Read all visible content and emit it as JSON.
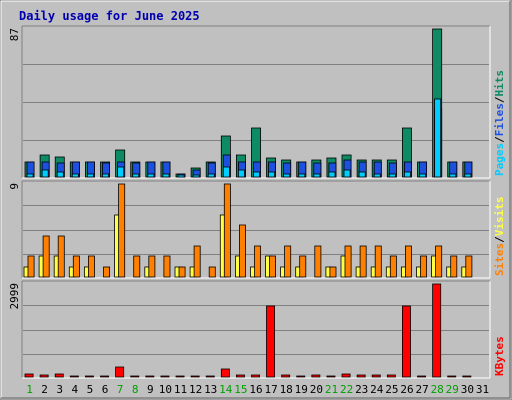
{
  "chart_data": {
    "type": "bar",
    "title": "Daily usage for June 2025",
    "days": [
      "1",
      "2",
      "3",
      "4",
      "5",
      "6",
      "7",
      "8",
      "9",
      "10",
      "11",
      "12",
      "13",
      "14",
      "15",
      "16",
      "17",
      "18",
      "19",
      "20",
      "21",
      "22",
      "23",
      "24",
      "25",
      "26",
      "27",
      "28",
      "29",
      "30",
      "31"
    ],
    "weekend_days": [
      "1",
      "7",
      "8",
      "14",
      "15",
      "21",
      "22",
      "28",
      "29"
    ],
    "panels": [
      {
        "id": "hits-files-pages",
        "max_label": "87",
        "ylim": [
          0,
          87
        ],
        "series": [
          {
            "name": "Hits",
            "color": "#0e8a64",
            "values": [
              9,
              13,
              12,
              9,
              9,
              9,
              16,
              9,
              9,
              9,
              2,
              5,
              9,
              24,
              13,
              29,
              11,
              10,
              9,
              10,
              11,
              13,
              10,
              10,
              10,
              29,
              9,
              87,
              9,
              9,
              null
            ]
          },
          {
            "name": "Files",
            "color": "#1e50e0",
            "values": [
              9,
              9,
              8,
              9,
              9,
              8,
              9,
              8,
              9,
              9,
              2,
              4,
              8,
              13,
              9,
              9,
              9,
              8,
              9,
              8,
              8,
              10,
              9,
              9,
              8,
              9,
              9,
              40,
              9,
              9,
              null
            ]
          },
          {
            "name": "Pages",
            "color": "#00ccff",
            "values": [
              2,
              4,
              3,
              2,
              2,
              2,
              6,
              2,
              2,
              2,
              1,
              1,
              2,
              6,
              4,
              3,
              3,
              2,
              2,
              2,
              3,
              4,
              3,
              2,
              2,
              3,
              2,
              46,
              2,
              2,
              null
            ]
          }
        ],
        "axis_labels": [
          "Pages",
          "/",
          "Files",
          "/",
          "Hits"
        ],
        "axis_label_colors": [
          "#00ccff",
          "#000000",
          "#1e50e0",
          "#000000",
          "#0e8a64"
        ]
      },
      {
        "id": "visits-sites",
        "max_label": "9",
        "ylim": [
          0,
          9
        ],
        "series": [
          {
            "name": "Visits",
            "color": "#ffff44",
            "values": [
              1,
              2,
              2,
              1,
              1,
              null,
              6,
              null,
              1,
              null,
              1,
              1,
              null,
              6,
              2,
              1,
              2,
              1,
              1,
              null,
              1,
              2,
              1,
              1,
              1,
              1,
              1,
              2,
              1,
              1,
              null
            ]
          },
          {
            "name": "Sites",
            "color": "#ff8000",
            "values": [
              2,
              4,
              4,
              2,
              2,
              1,
              9,
              2,
              2,
              2,
              1,
              3,
              1,
              9,
              5,
              3,
              2,
              3,
              2,
              3,
              1,
              3,
              3,
              3,
              2,
              3,
              2,
              3,
              2,
              2,
              null
            ]
          }
        ],
        "axis_labels": [
          "Sites",
          "/",
          "Visits"
        ],
        "axis_label_colors": [
          "#ff8000",
          "#000000",
          "#ffff44"
        ]
      },
      {
        "id": "kbytes",
        "max_label": "2999",
        "ylim": [
          0,
          2999
        ],
        "series": [
          {
            "name": "KBytes",
            "color": "#ff0000",
            "values": [
              90,
              80,
              110,
              20,
              20,
              20,
              330,
              20,
              20,
              20,
              20,
              40,
              20,
              250,
              70,
              70,
              2300,
              50,
              30,
              80,
              30,
              100,
              70,
              60,
              80,
              2300,
              30,
              2999,
              20,
              20,
              null
            ]
          }
        ],
        "axis_labels": [
          "KBytes"
        ],
        "axis_label_colors": [
          "#ff0000"
        ]
      }
    ]
  },
  "colors": {
    "background": "#c0c0c0",
    "frame_light": "#ffffff",
    "frame_dark": "#808080",
    "gridline": "#808080",
    "title": "#0000b0",
    "weekday_label": "#000000",
    "weekend_label": "#00a000"
  }
}
